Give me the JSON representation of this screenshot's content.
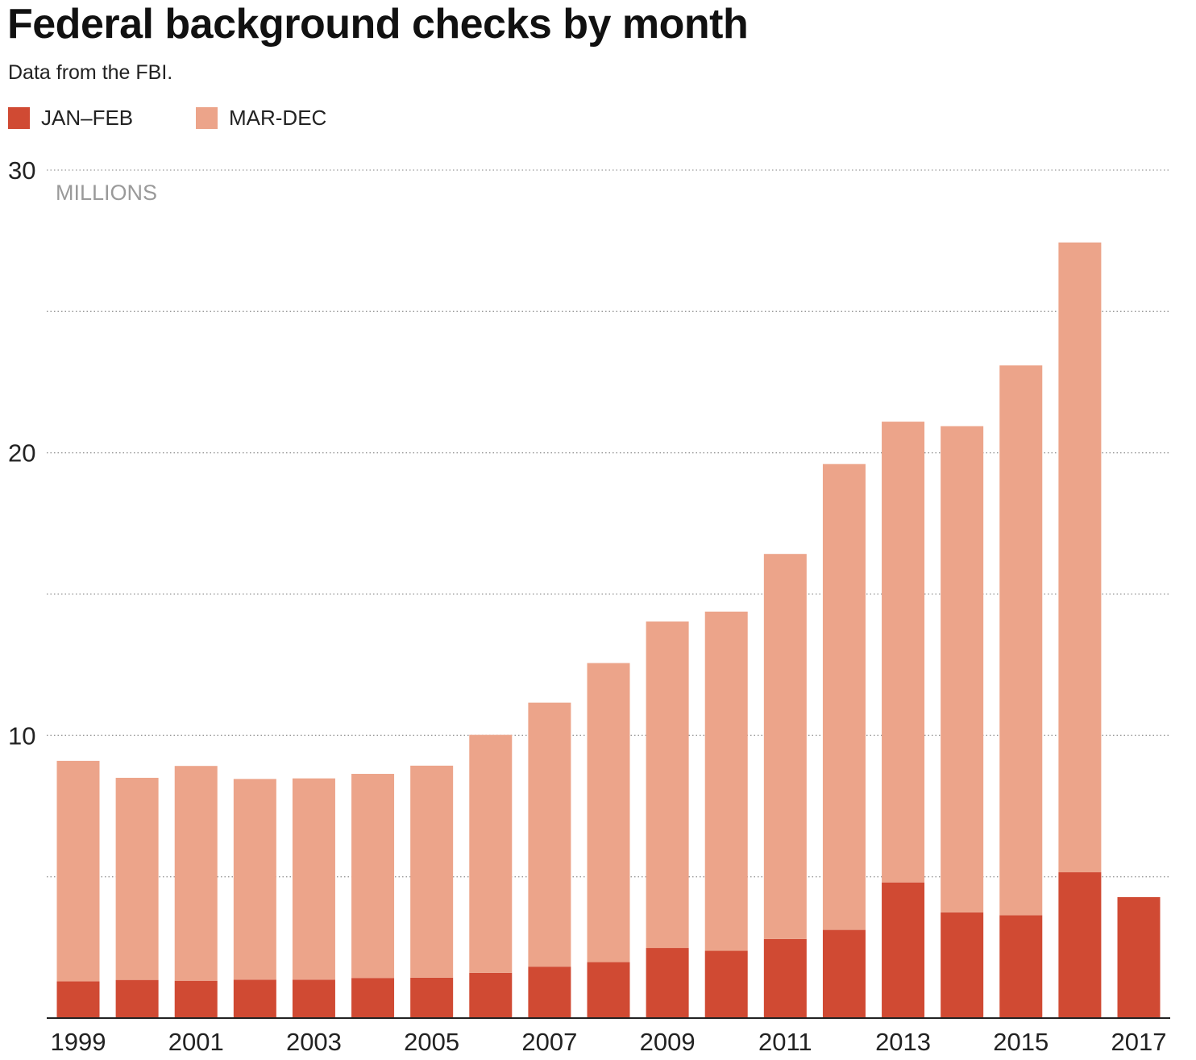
{
  "title": "Federal background checks by month",
  "subtitle": "Data from the FBI.",
  "legend": [
    {
      "label": "JAN–FEB",
      "color": "#d04a33"
    },
    {
      "label": "MAR-DEC",
      "color": "#eca48a"
    }
  ],
  "unit_label": "MILLIONS",
  "chart_data": {
    "type": "bar",
    "stacked": true,
    "title": "Federal background checks by month",
    "subtitle": "Data from the FBI.",
    "xlabel": "",
    "ylabel": "MILLIONS",
    "ylim": [
      0,
      30
    ],
    "y_ticks": [
      0,
      5,
      10,
      15,
      20,
      25,
      30
    ],
    "y_tick_labels": [
      "",
      "",
      "10",
      "",
      "20",
      "",
      "30"
    ],
    "grid": true,
    "legend_position": "top-left",
    "categories": [
      "1999",
      "2000",
      "2001",
      "2002",
      "2003",
      "2004",
      "2005",
      "2006",
      "2007",
      "2008",
      "2009",
      "2010",
      "2011",
      "2012",
      "2013",
      "2014",
      "2015",
      "2016",
      "2017"
    ],
    "x_tick_labels": [
      "1999",
      "",
      "2001",
      "",
      "2003",
      "",
      "2005",
      "",
      "2007",
      "",
      "2009",
      "",
      "2011",
      "",
      "2013",
      "",
      "2015",
      "",
      "2017"
    ],
    "series": [
      {
        "name": "JAN–FEB",
        "color": "#d04a33",
        "values": [
          1.3,
          1.35,
          1.32,
          1.36,
          1.36,
          1.42,
          1.43,
          1.6,
          1.82,
          1.98,
          2.48,
          2.38,
          2.8,
          3.12,
          4.8,
          3.74,
          3.64,
          5.16,
          4.28
        ]
      },
      {
        "name": "MAR-DEC",
        "color": "#eca48a",
        "values": [
          7.8,
          7.15,
          7.6,
          7.1,
          7.12,
          7.22,
          7.5,
          8.42,
          9.34,
          10.58,
          11.55,
          12.0,
          13.62,
          16.48,
          16.3,
          17.2,
          19.45,
          22.28,
          0
        ]
      }
    ]
  }
}
